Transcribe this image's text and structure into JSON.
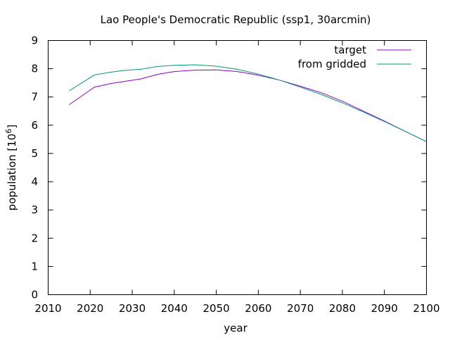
{
  "chart_data": {
    "type": "line",
    "title": "Lao People's Democratic Republic (ssp1, 30arcmin)",
    "xlabel": "year",
    "ylabel": "population [10",
    "ylabel_exponent": "6",
    "ylabel_close": "]",
    "xlim": [
      2010,
      2100
    ],
    "ylim": [
      0,
      9
    ],
    "xticks": [
      2010,
      2020,
      2030,
      2040,
      2050,
      2060,
      2070,
      2080,
      2090,
      2100
    ],
    "yticks": [
      0,
      1,
      2,
      3,
      4,
      5,
      6,
      7,
      8,
      9
    ],
    "grid": false,
    "legend_position": "top-right",
    "series": [
      {
        "name": "target",
        "color": "#9400d3",
        "x": [
          2015,
          2021,
          2025,
          2028,
          2032,
          2036,
          2040,
          2045,
          2050,
          2055,
          2060,
          2065,
          2070,
          2075,
          2080,
          2085,
          2090,
          2095,
          2100
        ],
        "y": [
          6.73,
          7.35,
          7.48,
          7.55,
          7.64,
          7.8,
          7.9,
          7.95,
          7.96,
          7.9,
          7.77,
          7.6,
          7.38,
          7.15,
          6.85,
          6.5,
          6.15,
          5.78,
          5.42
        ]
      },
      {
        "name": "from gridded",
        "color": "#009e73",
        "x": [
          2015,
          2021,
          2025,
          2028,
          2032,
          2036,
          2040,
          2045,
          2050,
          2055,
          2060,
          2065,
          2070,
          2075,
          2080,
          2085,
          2090,
          2095,
          2100
        ],
        "y": [
          7.22,
          7.78,
          7.88,
          7.94,
          7.98,
          8.08,
          8.12,
          8.14,
          8.09,
          7.98,
          7.81,
          7.6,
          7.35,
          7.09,
          6.79,
          6.47,
          6.13,
          5.78,
          5.42
        ]
      }
    ]
  }
}
